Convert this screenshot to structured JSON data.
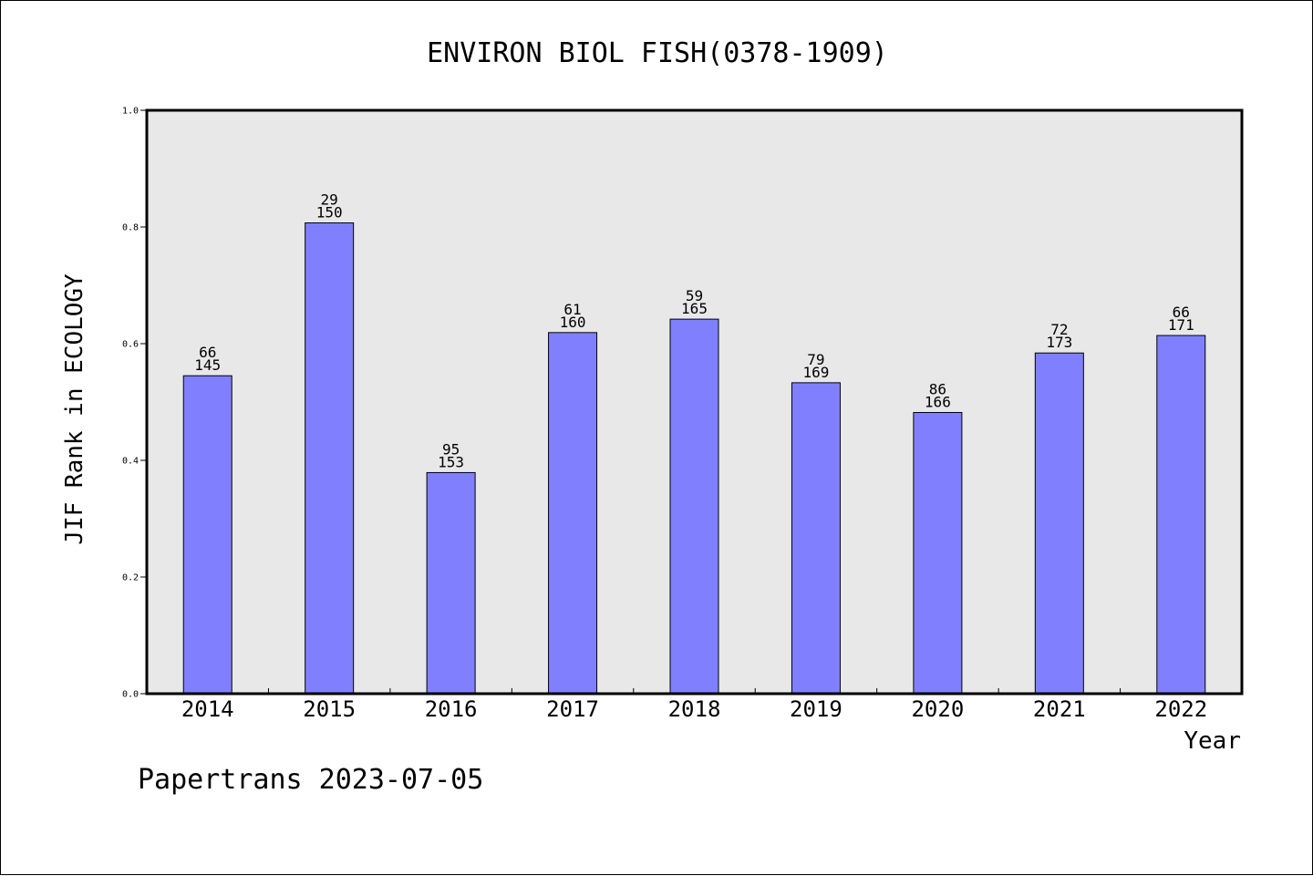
{
  "chart_data": {
    "type": "bar",
    "title": "ENVIRON BIOL FISH(0378-1909)",
    "xlabel": "Year",
    "ylabel": "JIF Rank in ECOLOGY",
    "ylim": [
      0,
      1.0
    ],
    "yticks": [
      "0.0",
      "0.2",
      "0.4",
      "0.6",
      "0.8",
      "1.0"
    ],
    "categories": [
      "2014",
      "2015",
      "2016",
      "2017",
      "2018",
      "2019",
      "2020",
      "2021",
      "2022"
    ],
    "values": [
      0.545,
      0.807,
      0.379,
      0.619,
      0.642,
      0.533,
      0.482,
      0.584,
      0.614
    ],
    "rank": [
      "66",
      "29",
      "95",
      "61",
      "59",
      "79",
      "86",
      "72",
      "66"
    ],
    "total": [
      "145",
      "150",
      "153",
      "160",
      "165",
      "169",
      "166",
      "173",
      "171"
    ],
    "grid": false,
    "bar_color": "#8080ff",
    "plot_background": "#e8e8e8"
  },
  "footer": "Papertrans 2023-07-05"
}
